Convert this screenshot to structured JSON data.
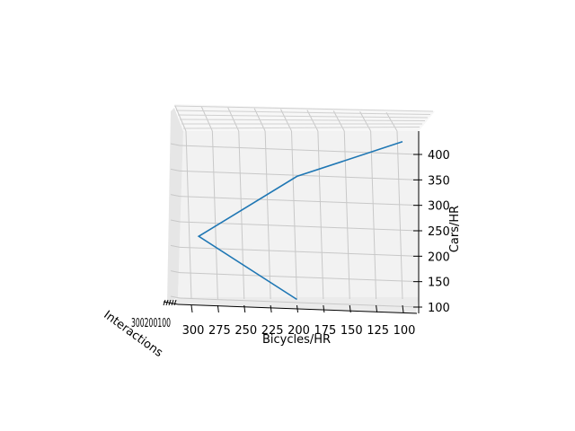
{
  "chart_data": {
    "type": "line",
    "projection": "3d",
    "xlabel": "Bicycles/HR",
    "ylabel": "Interactions",
    "zlabel": "Cars/HR",
    "x_ticks": [
      "300",
      "275",
      "250",
      "225",
      "200",
      "175",
      "150",
      "125",
      "100"
    ],
    "z_ticks": [
      "100",
      "150",
      "200",
      "250",
      "300",
      "350",
      "400"
    ],
    "y_tick_text": "300200100",
    "series": [
      {
        "color": "#1f77b4",
        "points": [
          {
            "bicycles": 200,
            "cars": 115
          },
          {
            "bicycles": 293,
            "cars": 239
          },
          {
            "bicycles": 200,
            "cars": 357
          },
          {
            "bicycles": 100,
            "cars": 425
          }
        ]
      }
    ],
    "grid": true
  }
}
